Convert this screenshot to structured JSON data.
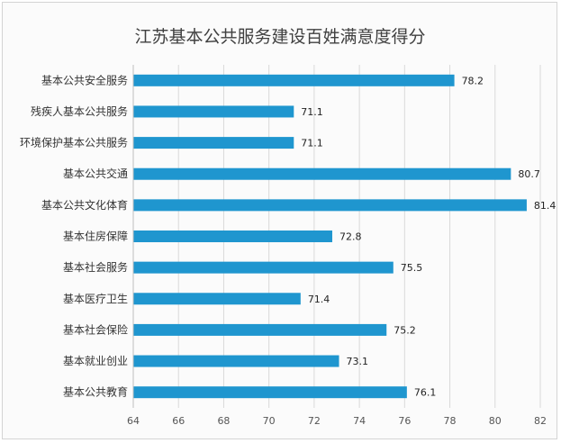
{
  "chart_data": {
    "type": "bar",
    "orientation": "horizontal",
    "title": "江苏基本公共服务建设百姓满意度得分",
    "categories": [
      "基本公共安全服务",
      "残疾人基本公共服务",
      "环境保护基本公共服务",
      "基本公共交通",
      "基本公共文化体育",
      "基本住房保障",
      "基本社会服务",
      "基本医疗卫生",
      "基本社会保险",
      "基本就业创业",
      "基本公共教育"
    ],
    "values": [
      78.2,
      71.1,
      71.1,
      80.7,
      81.4,
      72.8,
      75.5,
      71.4,
      75.2,
      73.1,
      76.1
    ],
    "value_labels": [
      "78.2",
      "71.1",
      "71.1",
      "80.7",
      "81.4",
      "72.8",
      "75.5",
      "71.4",
      "75.2",
      "73.1",
      "76.1"
    ],
    "xlim": [
      64,
      82
    ],
    "xticks": [
      "64",
      "66",
      "68",
      "70",
      "72",
      "74",
      "76",
      "78",
      "80",
      "82"
    ],
    "xlabel": "",
    "ylabel": "",
    "grid": true,
    "bar_color": "#1f96cf"
  }
}
